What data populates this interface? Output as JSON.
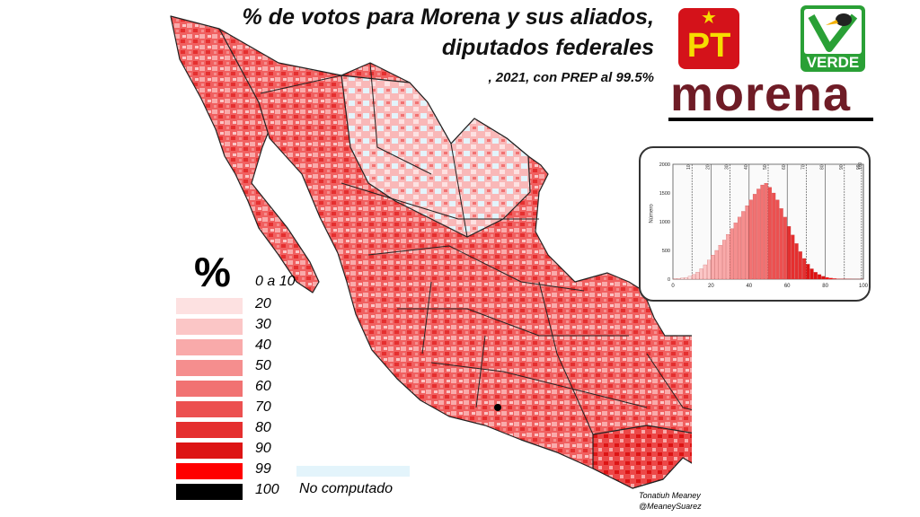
{
  "title": {
    "line1": "% de votos para Morena y sus aliados,",
    "line2": "diputados federales"
  },
  "subtitle": ", 2021, con PREP al 99.5%",
  "logos": {
    "pt": {
      "text": "PT",
      "bg": "#d4121a",
      "fg": "#f6dd00"
    },
    "verde": {
      "text": "VERDE",
      "bg": "#2aa036"
    },
    "morena": {
      "text": "morena",
      "color": "#6f1c26"
    }
  },
  "legend": {
    "symbol": "%",
    "items": [
      {
        "label": "0 a 10",
        "color": "#ffffff"
      },
      {
        "label": "20",
        "color": "#fde1e1"
      },
      {
        "label": "30",
        "color": "#fbc6c6"
      },
      {
        "label": "40",
        "color": "#f9aaaa"
      },
      {
        "label": "50",
        "color": "#f58e8e"
      },
      {
        "label": "60",
        "color": "#f17272"
      },
      {
        "label": "70",
        "color": "#ec5050"
      },
      {
        "label": "80",
        "color": "#e52f2f"
      },
      {
        "label": "90",
        "color": "#dd1414"
      },
      {
        "label": "99",
        "color": "#ff0000"
      },
      {
        "label": "100",
        "color": "#000000"
      }
    ],
    "no_data": {
      "label": "No computado",
      "color": "#e3f4fb"
    }
  },
  "credit": {
    "line1": "Tonatiuh Meaney",
    "line2": "@MeaneySuarez"
  },
  "chart_data": {
    "type": "bar",
    "ylabel": "Número",
    "xlim": [
      0,
      100
    ],
    "ylim": [
      0,
      2000
    ],
    "x_ticks": [
      0,
      20,
      40,
      60,
      80,
      100
    ],
    "y_ticks": [
      0,
      500,
      1000,
      1500,
      2000
    ],
    "top_ticks": [
      10,
      20,
      30,
      40,
      50,
      60,
      70,
      80,
      90,
      99,
      100
    ],
    "grid": true,
    "categories": [
      0,
      2,
      4,
      6,
      8,
      10,
      12,
      14,
      16,
      18,
      20,
      22,
      24,
      26,
      28,
      30,
      32,
      34,
      36,
      38,
      40,
      42,
      44,
      46,
      48,
      50,
      52,
      54,
      56,
      58,
      60,
      62,
      64,
      66,
      68,
      70,
      72,
      74,
      76,
      78,
      80,
      82,
      84,
      86,
      88,
      90,
      92,
      94,
      96,
      98
    ],
    "values": [
      5,
      10,
      20,
      30,
      50,
      80,
      120,
      180,
      250,
      330,
      420,
      500,
      590,
      680,
      780,
      880,
      980,
      1080,
      1180,
      1280,
      1380,
      1480,
      1570,
      1640,
      1670,
      1600,
      1500,
      1380,
      1230,
      1080,
      920,
      770,
      620,
      480,
      360,
      260,
      180,
      120,
      80,
      50,
      30,
      18,
      10,
      6,
      4,
      3,
      2,
      1,
      1,
      1
    ]
  }
}
